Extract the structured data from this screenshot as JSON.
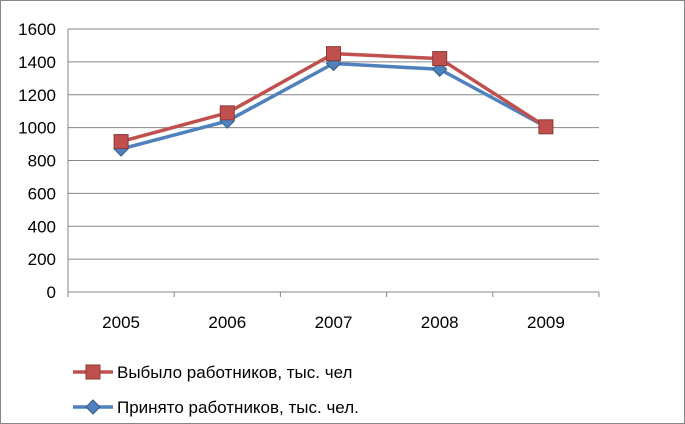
{
  "chart_data": {
    "type": "line",
    "title": "",
    "xlabel": "",
    "ylabel": "",
    "categories": [
      "2005",
      "2006",
      "2007",
      "2008",
      "2009"
    ],
    "ylim": [
      0,
      1600
    ],
    "ytick_step": 200,
    "grid": true,
    "legend_position": "bottom-left",
    "series": [
      {
        "name": "Выбыло работников, тыс. чел",
        "values": [
          915,
          1090,
          1450,
          1420,
          1005
        ],
        "color": "#C0504D",
        "marker": "square"
      },
      {
        "name": "Принято работников, тыс. чел.",
        "values": [
          870,
          1040,
          1390,
          1355,
          1005
        ],
        "color": "#4F81BD",
        "marker": "diamond"
      }
    ]
  }
}
